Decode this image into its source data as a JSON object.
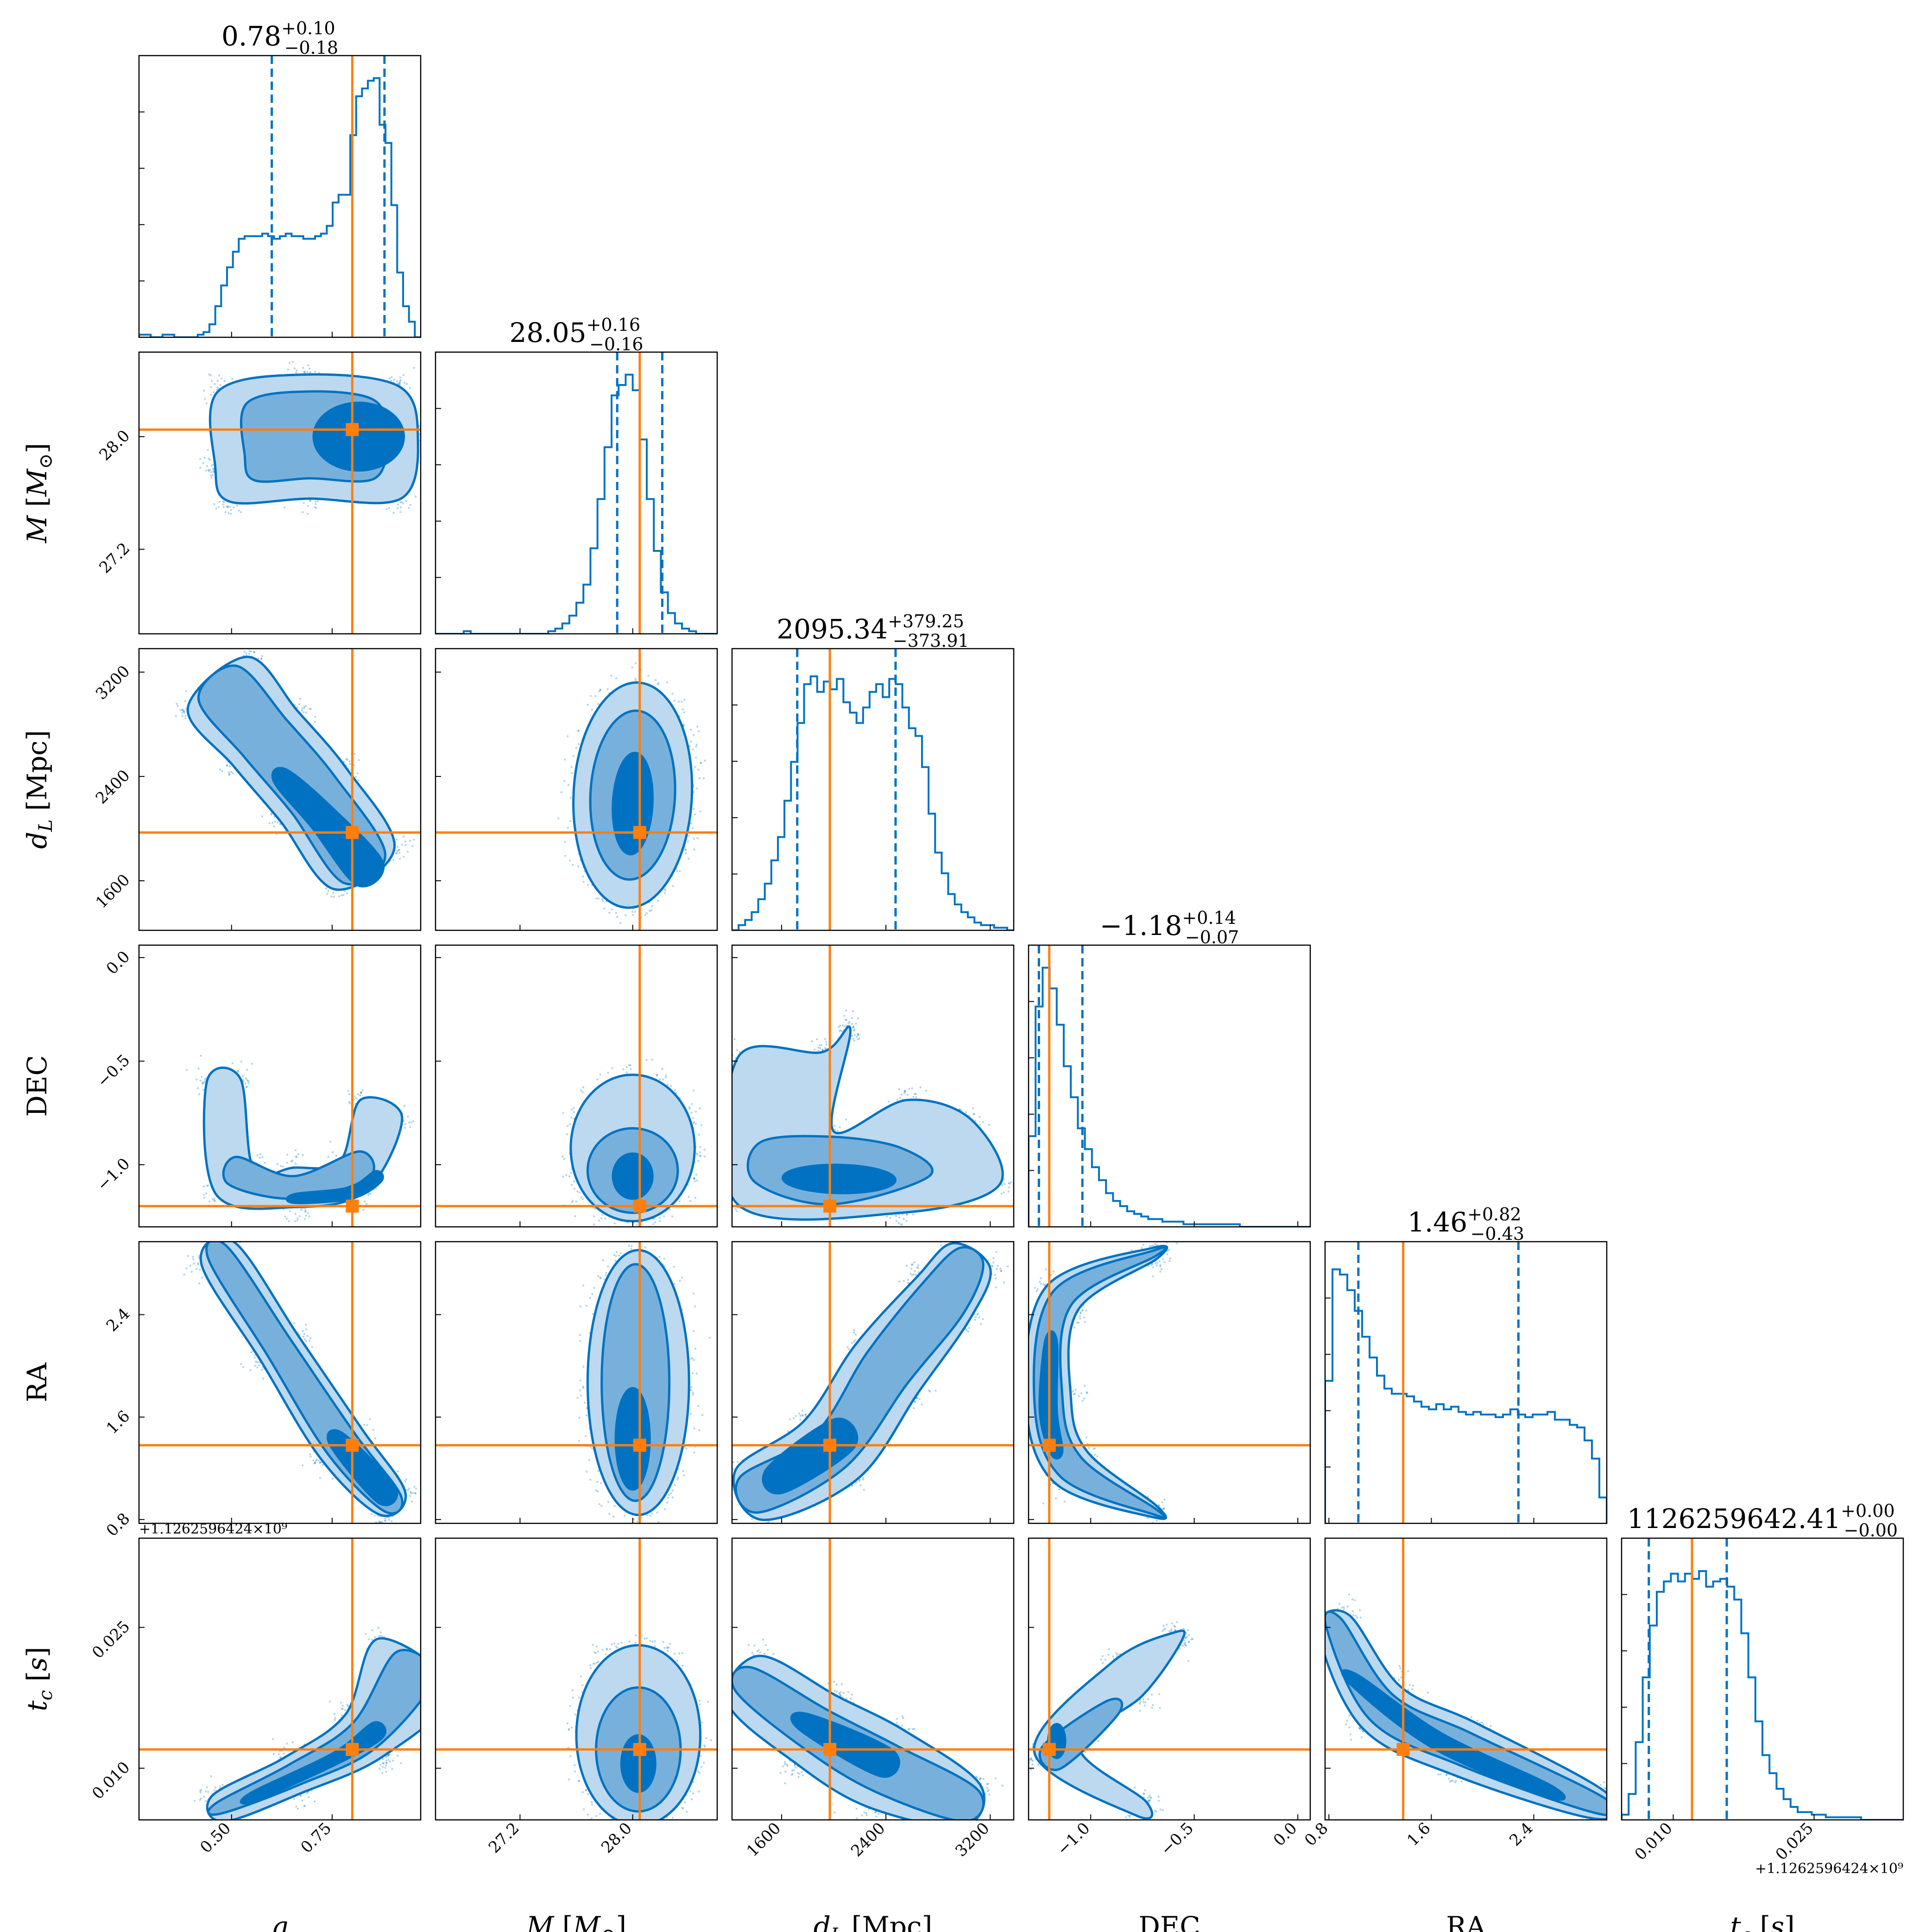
{
  "chart_data": {
    "type": "scatter",
    "title": "",
    "parameters": [
      {
        "key": "q",
        "label": "q",
        "range": [
          0.27,
          0.97
        ],
        "ticks": [
          0.5,
          0.75
        ],
        "tick_labels": [
          "0.50",
          "0.75"
        ],
        "truth": 0.8,
        "median": "0.78",
        "plus": "+0.10",
        "minus": "−0.18",
        "q_lo": 0.6,
        "q_hi": 0.88
      },
      {
        "key": "M",
        "label": "M [M⊙]",
        "range": [
          26.6,
          28.6
        ],
        "ticks": [
          27.2,
          28.0
        ],
        "tick_labels": [
          "27.2",
          "28.0"
        ],
        "truth": 28.05,
        "median": "28.05",
        "plus": "+0.16",
        "minus": "−0.16",
        "q_lo": 27.89,
        "q_hi": 28.21
      },
      {
        "key": "dL",
        "label": "d_L [Mpc]",
        "range": [
          1220,
          3380
        ],
        "ticks": [
          1600,
          2400,
          3200
        ],
        "tick_labels": [
          "1600",
          "2400",
          "3200"
        ],
        "truth": 1970,
        "median": "2095.34",
        "plus": "+379.25",
        "minus": "−373.91",
        "q_lo": 1720,
        "q_hi": 2474
      },
      {
        "key": "DEC",
        "label": "DEC",
        "range": [
          -1.3,
          0.06
        ],
        "ticks": [
          -1.0,
          -0.5,
          0.0
        ],
        "tick_labels": [
          "−1.0",
          "−0.5",
          "0.0"
        ],
        "truth": -1.2,
        "median": "−1.18",
        "plus": "+0.14",
        "minus": "−0.07",
        "q_lo": -1.25,
        "q_hi": -1.04
      },
      {
        "key": "RA",
        "label": "RA",
        "range": [
          0.77,
          2.97
        ],
        "ticks": [
          0.8,
          1.6,
          2.4
        ],
        "tick_labels": [
          "0.8",
          "1.6",
          "2.4"
        ],
        "truth": 1.38,
        "median": "1.46",
        "plus": "+0.82",
        "minus": "−0.43",
        "q_lo": 1.03,
        "q_hi": 2.28
      },
      {
        "key": "tc",
        "label": "t_c [s]",
        "range": [
          0.0045,
          0.0345
        ],
        "ticks": [
          0.01,
          0.025
        ],
        "tick_labels": [
          "0.010",
          "0.025"
        ],
        "truth": 0.012,
        "median": "1126259642.41",
        "plus": "+0.00",
        "minus": "−0.00",
        "q_lo": 0.0074,
        "q_hi": 0.0157
      }
    ],
    "tick_offset_label": "+1.1262596424×10⁹",
    "histograms": [
      {
        "key": "q",
        "heights": [
          0.01,
          0.01,
          0.0,
          0.0,
          0.01,
          0.01,
          0.0,
          0.0,
          0.0,
          0.0,
          0.01,
          0.02,
          0.05,
          0.12,
          0.2,
          0.27,
          0.33,
          0.38,
          0.39,
          0.39,
          0.39,
          0.4,
          0.39,
          0.38,
          0.39,
          0.4,
          0.39,
          0.39,
          0.38,
          0.38,
          0.39,
          0.4,
          0.43,
          0.52,
          0.55,
          0.55,
          0.78,
          0.93,
          0.96,
          0.99,
          1.0,
          0.82,
          0.75,
          0.51,
          0.25,
          0.12,
          0.06,
          0.0
        ]
      },
      {
        "key": "M",
        "heights": [
          0.0,
          0.0,
          0.0,
          0.0,
          0.01,
          0.0,
          0.0,
          0.0,
          0.0,
          0.0,
          0.0,
          0.0,
          0.0,
          0.0,
          0.0,
          0.0,
          0.01,
          0.02,
          0.04,
          0.07,
          0.12,
          0.19,
          0.33,
          0.52,
          0.72,
          0.92,
          0.96,
          1.0,
          0.94,
          0.75,
          0.52,
          0.32,
          0.16,
          0.08,
          0.04,
          0.02,
          0.01,
          0.0,
          0.0,
          0.0
        ]
      },
      {
        "key": "dL",
        "heights": [
          0.0,
          0.02,
          0.04,
          0.07,
          0.12,
          0.18,
          0.27,
          0.36,
          0.5,
          0.65,
          0.8,
          0.95,
          0.98,
          0.92,
          0.96,
          0.93,
          0.97,
          0.88,
          0.84,
          0.8,
          0.86,
          0.92,
          0.95,
          0.9,
          0.97,
          0.95,
          0.86,
          0.78,
          0.75,
          0.63,
          0.45,
          0.3,
          0.22,
          0.14,
          0.1,
          0.07,
          0.05,
          0.03,
          0.02,
          0.02,
          0.01,
          0.01,
          0.0
        ]
      },
      {
        "key": "DEC",
        "heights": [
          0.35,
          0.85,
          1.0,
          0.92,
          0.78,
          0.62,
          0.5,
          0.38,
          0.3,
          0.23,
          0.18,
          0.13,
          0.1,
          0.08,
          0.06,
          0.05,
          0.04,
          0.03,
          0.03,
          0.02,
          0.02,
          0.02,
          0.01,
          0.01,
          0.01,
          0.01,
          0.01,
          0.01,
          0.01,
          0.01,
          0.0,
          0.0,
          0.0,
          0.0,
          0.0,
          0.0,
          0.0,
          0.0,
          0.0,
          0.0
        ]
      },
      {
        "key": "RA",
        "heights": [
          0.55,
          0.98,
          0.96,
          0.9,
          0.82,
          0.72,
          0.64,
          0.57,
          0.52,
          0.5,
          0.5,
          0.49,
          0.47,
          0.45,
          0.44,
          0.46,
          0.44,
          0.45,
          0.43,
          0.42,
          0.43,
          0.42,
          0.42,
          0.41,
          0.42,
          0.44,
          0.42,
          0.41,
          0.42,
          0.42,
          0.43,
          0.4,
          0.4,
          0.38,
          0.37,
          0.32,
          0.25,
          0.1
        ]
      },
      {
        "key": "tc",
        "heights": [
          0.02,
          0.1,
          0.3,
          0.55,
          0.75,
          0.88,
          0.92,
          0.95,
          0.92,
          0.95,
          0.93,
          0.96,
          0.9,
          0.92,
          0.93,
          0.9,
          0.85,
          0.72,
          0.55,
          0.38,
          0.25,
          0.18,
          0.12,
          0.08,
          0.05,
          0.03,
          0.03,
          0.02,
          0.02,
          0.01,
          0.01,
          0.01,
          0.01,
          0.01,
          0.0,
          0.0,
          0.0,
          0.0,
          0.0,
          0.0
        ]
      }
    ],
    "colors": {
      "posterior": "#0072c1",
      "truth": "#ff7f0e",
      "contour_light": "#bcd9ef",
      "contour_mid": "#78b0dc",
      "contour_dark": "#0072c1"
    },
    "contour_levels": [
      "0.5σ",
      "1σ",
      "1.5σ",
      "2σ"
    ],
    "grid": false,
    "legend": "none"
  }
}
